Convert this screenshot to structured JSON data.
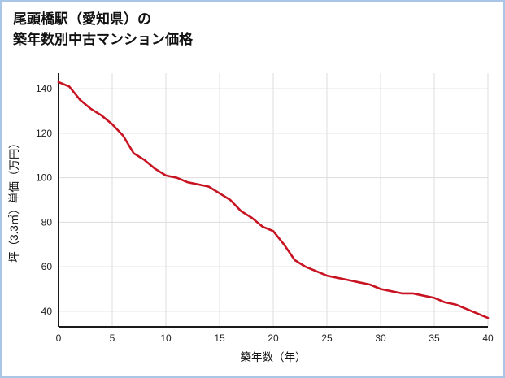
{
  "header": {
    "title_line1": "尾頭橋駅（愛知県）の",
    "title_line2": "築年数別中古マンション価格"
  },
  "chart_data": {
    "type": "line",
    "title": "尾頭橋駅（愛知県）の築年数別中古マンション価格",
    "xlabel": "築年数（年）",
    "ylabel": "坪（3.3㎡）単価（万円）",
    "x": [
      0,
      1,
      2,
      3,
      4,
      5,
      6,
      7,
      8,
      9,
      10,
      11,
      12,
      13,
      14,
      15,
      16,
      17,
      18,
      19,
      20,
      21,
      22,
      23,
      24,
      25,
      26,
      27,
      28,
      29,
      30,
      31,
      32,
      33,
      34,
      35,
      36,
      37,
      38,
      39,
      40
    ],
    "values": [
      143,
      141,
      135,
      131,
      128,
      124,
      119,
      111,
      108,
      104,
      101,
      100,
      98,
      97,
      96,
      93,
      90,
      85,
      82,
      78,
      76,
      70,
      63,
      60,
      58,
      56,
      55,
      54,
      53,
      52,
      50,
      49,
      48,
      48,
      47,
      46,
      44,
      43,
      41,
      39,
      37
    ],
    "xlim": [
      0,
      40
    ],
    "ylim": [
      33,
      147
    ],
    "xticks": [
      0,
      5,
      10,
      15,
      20,
      25,
      30,
      35,
      40
    ],
    "yticks": [
      40,
      60,
      80,
      100,
      120,
      140
    ],
    "grid": true,
    "legend": "none",
    "line_color": "#c81422",
    "axis_color": "#1a1a1a",
    "grid_color": "#dddddd"
  }
}
